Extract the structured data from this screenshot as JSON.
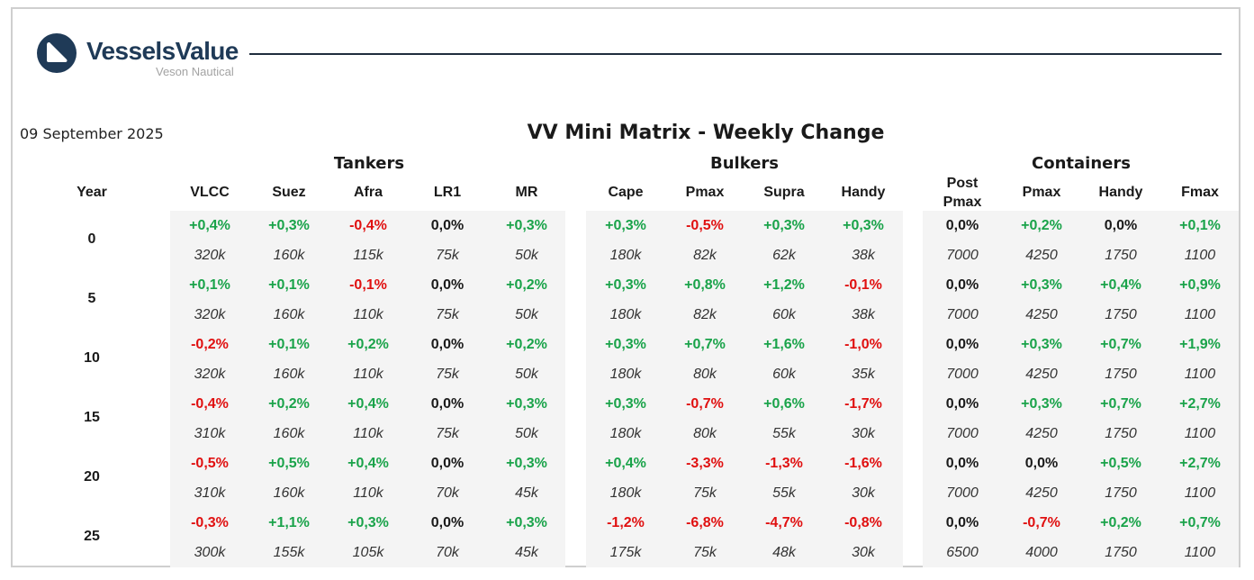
{
  "brand": {
    "name": "VesselsValue",
    "tagline": "Veson Nautical",
    "primary_color": "#1f3a57"
  },
  "date": "09 September 2025",
  "title": "VV Mini Matrix - Weekly Change",
  "colors": {
    "positive": "#1aa34a",
    "negative": "#e01010",
    "neutral": "#1a1a1a",
    "band": "#f4f4f4"
  },
  "year_header": "Year",
  "groups": [
    {
      "name": "Tankers",
      "columns": [
        "VLCC",
        "Suez",
        "Afra",
        "LR1",
        "MR"
      ]
    },
    {
      "name": "Bulkers",
      "columns": [
        "Cape",
        "Pmax",
        "Supra",
        "Handy"
      ]
    },
    {
      "name": "Containers",
      "columns": [
        "Post Pmax",
        "Pmax",
        "Handy",
        "Fmax"
      ]
    }
  ],
  "rows": [
    {
      "year": "0",
      "changes": [
        "+0,4%",
        "+0,3%",
        "-0,4%",
        "0,0%",
        "+0,3%",
        "+0,3%",
        "-0,5%",
        "+0,3%",
        "+0,3%",
        "0,0%",
        "+0,2%",
        "0,0%",
        "+0,1%"
      ],
      "values": [
        "320k",
        "160k",
        "115k",
        "75k",
        "50k",
        "180k",
        "82k",
        "62k",
        "38k",
        "7000",
        "4250",
        "1750",
        "1100"
      ]
    },
    {
      "year": "5",
      "changes": [
        "+0,1%",
        "+0,1%",
        "-0,1%",
        "0,0%",
        "+0,2%",
        "+0,3%",
        "+0,8%",
        "+1,2%",
        "-0,1%",
        "0,0%",
        "+0,3%",
        "+0,4%",
        "+0,9%"
      ],
      "values": [
        "320k",
        "160k",
        "110k",
        "75k",
        "50k",
        "180k",
        "82k",
        "60k",
        "38k",
        "7000",
        "4250",
        "1750",
        "1100"
      ]
    },
    {
      "year": "10",
      "changes": [
        "-0,2%",
        "+0,1%",
        "+0,2%",
        "0,0%",
        "+0,2%",
        "+0,3%",
        "+0,7%",
        "+1,6%",
        "-1,0%",
        "0,0%",
        "+0,3%",
        "+0,7%",
        "+1,9%"
      ],
      "values": [
        "320k",
        "160k",
        "110k",
        "75k",
        "50k",
        "180k",
        "80k",
        "60k",
        "35k",
        "7000",
        "4250",
        "1750",
        "1100"
      ]
    },
    {
      "year": "15",
      "changes": [
        "-0,4%",
        "+0,2%",
        "+0,4%",
        "0,0%",
        "+0,3%",
        "+0,3%",
        "-0,7%",
        "+0,6%",
        "-1,7%",
        "0,0%",
        "+0,3%",
        "+0,7%",
        "+2,7%"
      ],
      "values": [
        "310k",
        "160k",
        "110k",
        "75k",
        "50k",
        "180k",
        "80k",
        "55k",
        "30k",
        "7000",
        "4250",
        "1750",
        "1100"
      ]
    },
    {
      "year": "20",
      "changes": [
        "-0,5%",
        "+0,5%",
        "+0,4%",
        "0,0%",
        "+0,3%",
        "+0,4%",
        "-3,3%",
        "-1,3%",
        "-1,6%",
        "0,0%",
        "0,0%",
        "+0,5%",
        "+2,7%"
      ],
      "values": [
        "310k",
        "160k",
        "110k",
        "70k",
        "45k",
        "180k",
        "75k",
        "55k",
        "30k",
        "7000",
        "4250",
        "1750",
        "1100"
      ]
    },
    {
      "year": "25",
      "changes": [
        "-0,3%",
        "+1,1%",
        "+0,3%",
        "0,0%",
        "+0,3%",
        "-1,2%",
        "-6,8%",
        "-4,7%",
        "-0,8%",
        "0,0%",
        "-0,7%",
        "+0,2%",
        "+0,7%"
      ],
      "values": [
        "300k",
        "155k",
        "105k",
        "70k",
        "45k",
        "175k",
        "75k",
        "48k",
        "30k",
        "6500",
        "4000",
        "1750",
        "1100"
      ]
    }
  ]
}
